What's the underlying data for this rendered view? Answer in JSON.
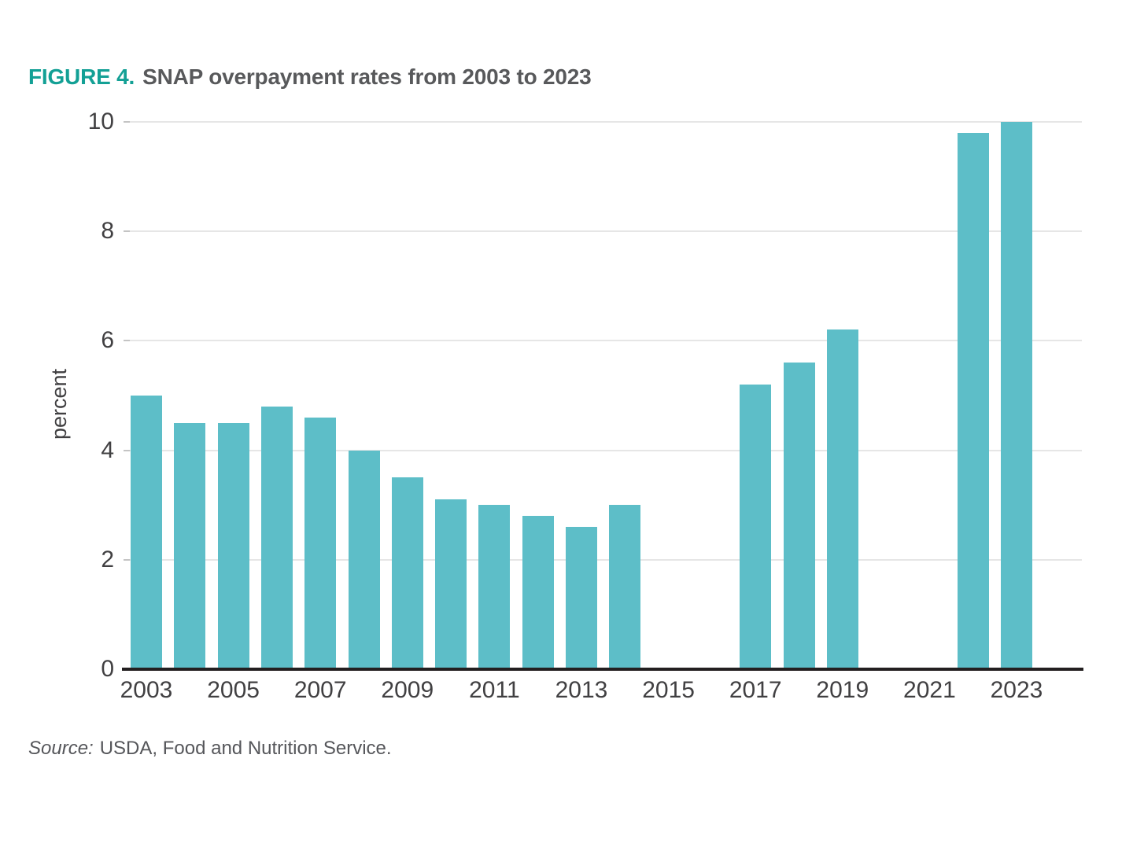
{
  "figure": {
    "label": "FIGURE 4.",
    "title": "SNAP overpayment rates from 2003 to 2023",
    "source_prefix": "Source:",
    "source_text": "USDA, Food and Nutrition Service."
  },
  "colors": {
    "bar": "#5dbec8",
    "accent": "#13a095",
    "title_text": "#58595b",
    "axis_text": "#414042",
    "gridline": "#e6e6e6",
    "tick": "#c4c4c4",
    "baseline": "#231f20",
    "source_text": "#55565a"
  },
  "chart_data": {
    "type": "bar",
    "title": "SNAP overpayment rates from 2003 to 2023",
    "xlabel": "",
    "ylabel": "percent",
    "ylim": [
      0,
      10
    ],
    "yticks": [
      0,
      2,
      4,
      6,
      8,
      10
    ],
    "xtick_labels": [
      2003,
      2005,
      2007,
      2009,
      2011,
      2013,
      2015,
      2017,
      2019,
      2021,
      2023
    ],
    "categories": [
      2003,
      2004,
      2005,
      2006,
      2007,
      2008,
      2009,
      2010,
      2011,
      2012,
      2013,
      2014,
      2015,
      2016,
      2017,
      2018,
      2019,
      2020,
      2021,
      2022,
      2023
    ],
    "values": [
      5.0,
      4.5,
      4.5,
      4.8,
      4.6,
      4.0,
      3.5,
      3.1,
      3.0,
      2.8,
      2.6,
      3.0,
      null,
      null,
      5.2,
      5.6,
      6.2,
      null,
      null,
      9.8,
      10.0
    ],
    "grid": "horizontal",
    "legend": "none",
    "bar_color_hex": "#5dbec8"
  }
}
